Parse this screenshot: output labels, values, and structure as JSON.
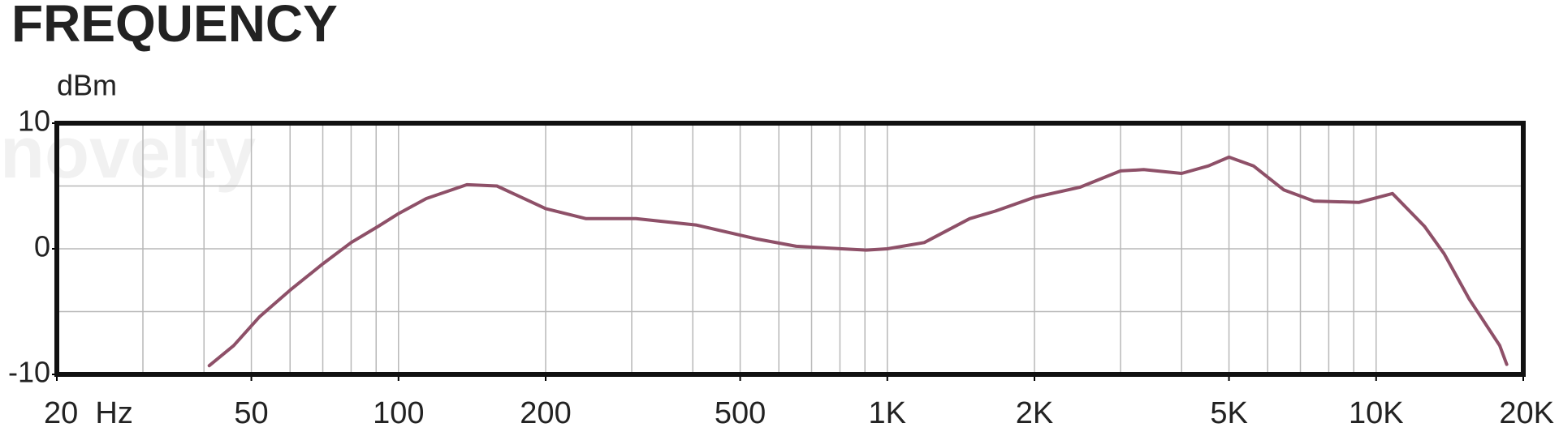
{
  "chart_data": {
    "type": "line",
    "title": "FREQUENCY",
    "y_label": "dBm",
    "watermark": "novelty",
    "x": [
      41,
      46,
      52,
      60,
      70,
      80,
      91,
      100,
      114,
      138,
      159,
      200,
      242,
      306,
      406,
      538,
      651,
      906,
      1000,
      1190,
      1474,
      1663,
      2000,
      2476,
      3000,
      3346,
      4000,
      4540,
      5000,
      5610,
      6470,
      7460,
      9230,
      10800,
      12550,
      13780,
      15500,
      17900,
      18500
    ],
    "values": [
      -9.3,
      -7.7,
      -5.4,
      -3.3,
      -1.2,
      0.5,
      1.8,
      2.8,
      4.0,
      5.1,
      5.0,
      3.2,
      2.4,
      2.4,
      1.9,
      0.8,
      0.2,
      -0.1,
      0,
      0.5,
      2.4,
      3.0,
      4.1,
      4.9,
      6.2,
      6.3,
      6.0,
      6.6,
      7.3,
      6.6,
      4.7,
      3.8,
      3.7,
      4.4,
      1.8,
      -0.4,
      -4.0,
      -7.7,
      -9.2
    ],
    "color": "#8e5068",
    "log_x": true,
    "xlim": [
      20,
      20000
    ],
    "ylim": [
      -10,
      10
    ],
    "xticks": [
      {
        "value": 20,
        "label": "20  Hz"
      },
      50,
      100,
      200,
      500,
      {
        "value": 1000,
        "label": "1K"
      },
      {
        "value": 2000,
        "label": "2K"
      },
      {
        "value": 5000,
        "label": "5K"
      },
      {
        "value": 10000,
        "label": "10K"
      },
      {
        "value": 20000,
        "label": "20K"
      }
    ],
    "xgrid": [
      30,
      40,
      50,
      60,
      70,
      80,
      90,
      100,
      200,
      300,
      400,
      500,
      600,
      700,
      800,
      900,
      1000,
      2000,
      3000,
      4000,
      5000,
      6000,
      7000,
      8000,
      9000,
      10000
    ],
    "yticks": [
      -10,
      0,
      10
    ],
    "ygrid": [
      -5,
      0,
      5
    ],
    "grid": true
  }
}
